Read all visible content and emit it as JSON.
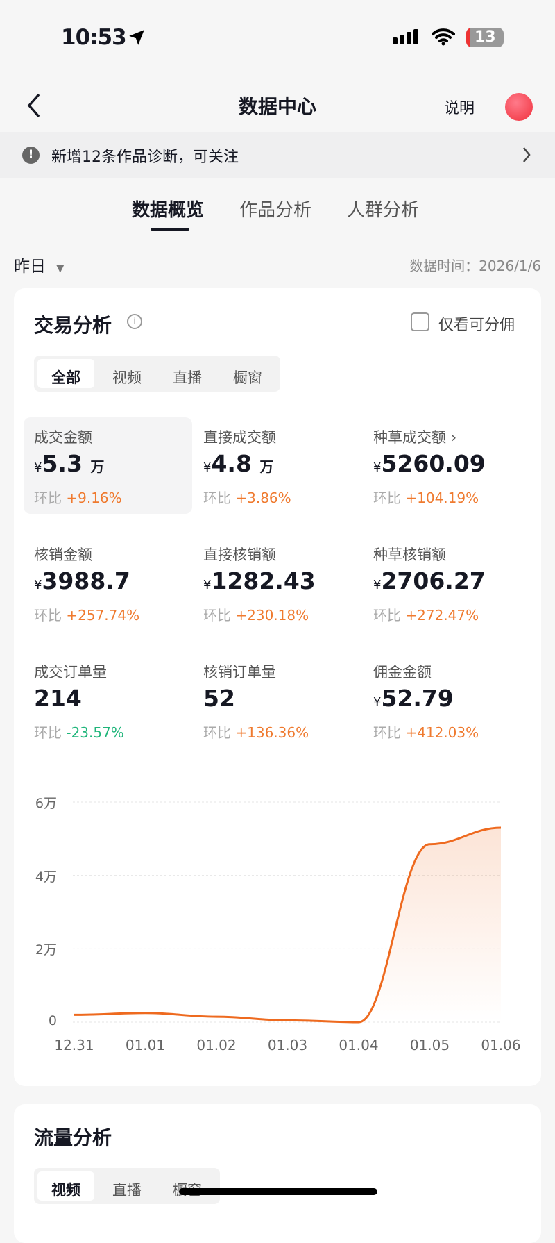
{
  "status_bar": {
    "time": "10:53",
    "battery": "13"
  },
  "nav": {
    "title": "数据中心",
    "explain": "说明"
  },
  "banner": {
    "text": "新增12条作品诊断，可关注"
  },
  "tabs": [
    {
      "label": "数据概览",
      "active": true
    },
    {
      "label": "作品分析"
    },
    {
      "label": "人群分析"
    }
  ],
  "filter": {
    "period": "昨日",
    "data_time": "数据时间：2026/1/6"
  },
  "trade": {
    "title": "交易分析",
    "only_commission": "仅看可分佣",
    "segments": [
      "全部",
      "视频",
      "直播",
      "橱窗"
    ],
    "currency": "¥",
    "compare_label": "环比",
    "metrics": [
      {
        "label": "成交金额",
        "value": "5.3",
        "unit": "万",
        "change": "+9.16%",
        "selected": true
      },
      {
        "label": "直接成交额",
        "value": "4.8",
        "unit": "万",
        "change": "+3.86%"
      },
      {
        "label": "种草成交额",
        "value": "5260.09",
        "change": "+104.19%",
        "has_arrow": true
      },
      {
        "label": "核销金额",
        "value": "3988.7",
        "change": "+257.74%"
      },
      {
        "label": "直接核销额",
        "value": "1282.43",
        "change": "+230.18%"
      },
      {
        "label": "种草核销额",
        "value": "2706.27",
        "change": "+272.47%"
      },
      {
        "label": "成交订单量",
        "value": "214",
        "change": "-23.57%",
        "no_currency": true
      },
      {
        "label": "核销订单量",
        "value": "52",
        "change": "+136.36%",
        "no_currency": true
      },
      {
        "label": "佣金金额",
        "value": "52.79",
        "change": "+412.03%"
      }
    ]
  },
  "chart_data": {
    "type": "area",
    "categories": [
      "12.31",
      "01.01",
      "01.02",
      "01.03",
      "01.04",
      "01.05",
      "01.06"
    ],
    "values": [
      2000,
      2500,
      1500,
      500,
      0,
      48500,
      53000
    ],
    "yticks": [
      "0",
      "2万",
      "4万",
      "6万"
    ],
    "ylim": [
      0,
      60000
    ],
    "grid": true,
    "color": "#ee6a1f"
  },
  "traffic": {
    "title": "流量分析",
    "segments": [
      "视频",
      "直播",
      "橱窗"
    ]
  }
}
